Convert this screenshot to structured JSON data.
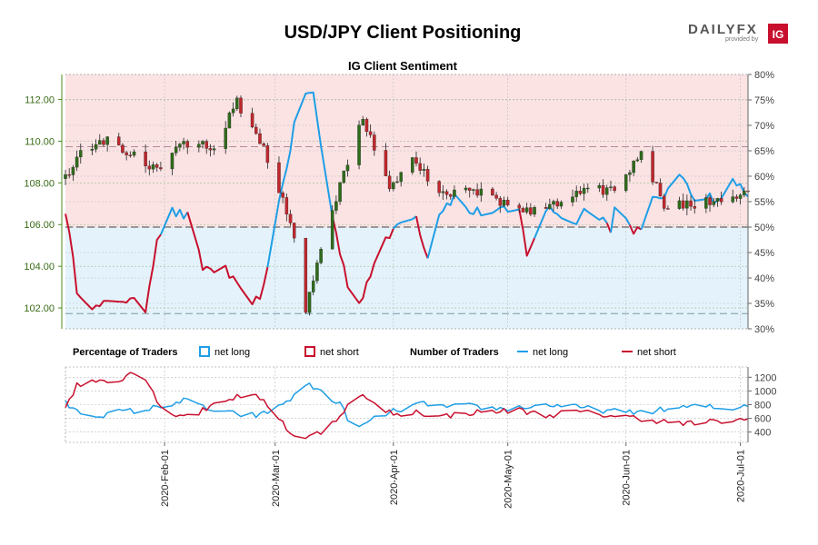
{
  "header": {
    "title": "USD/JPY Client Positioning",
    "logo_text": "DAILYFX",
    "logo_sub": "provided by",
    "logo_badge": "IG"
  },
  "colors": {
    "long": "#1e9ee6",
    "short": "#c8102e",
    "short_zone": "#fbe3e4",
    "long_zone": "#e4f3fb",
    "candle_up": "#2e6b1a",
    "candle_down": "#c0272d",
    "left_axis": "#4a8c1c"
  },
  "chart_data": [
    {
      "type": "candlestick+line",
      "title": "IG Client Sentiment",
      "left_axis": {
        "label": "",
        "ylim": [
          101.0,
          113.2
        ],
        "ticks": [
          "102.00",
          "104.00",
          "106.00",
          "108.00",
          "110.00",
          "112.00"
        ]
      },
      "right_axis": {
        "label": "",
        "ylim": [
          30,
          80
        ],
        "ticks": [
          "30%",
          "35%",
          "40%",
          "45%",
          "50%",
          "55%",
          "60%",
          "65%",
          "70%",
          "75%",
          "80%"
        ]
      },
      "date_range": [
        "2020-01-06",
        "2020-07-03"
      ],
      "x_ticks": [
        "2020-Feb-01",
        "2020-Mar-01",
        "2020-Apr-01",
        "2020-May-01",
        "2020-Jun-01",
        "2020-Jul-01"
      ],
      "reference_lines_pct": [
        50,
        65.8,
        33
      ],
      "price_keypoints": [
        [
          "2020-01-06",
          108.2
        ],
        [
          "2020-01-10",
          109.5
        ],
        [
          "2020-01-17",
          110.1
        ],
        [
          "2020-01-24",
          109.3
        ],
        [
          "2020-01-31",
          108.6
        ],
        [
          "2020-02-05",
          109.8
        ],
        [
          "2020-02-14",
          109.8
        ],
        [
          "2020-02-20",
          111.9
        ],
        [
          "2020-02-27",
          109.6
        ],
        [
          "2020-03-02",
          107.6
        ],
        [
          "2020-03-06",
          105.5
        ],
        [
          "2020-03-09",
          102.0
        ],
        [
          "2020-03-12",
          104.0
        ],
        [
          "2020-03-18",
          108.0
        ],
        [
          "2020-03-24",
          111.2
        ],
        [
          "2020-03-31",
          107.6
        ],
        [
          "2020-04-06",
          109.0
        ],
        [
          "2020-04-14",
          107.5
        ],
        [
          "2020-04-20",
          107.7
        ],
        [
          "2020-04-24",
          107.6
        ],
        [
          "2020-05-01",
          106.9
        ],
        [
          "2020-05-08",
          106.6
        ],
        [
          "2020-05-15",
          107.2
        ],
        [
          "2020-05-22",
          107.6
        ],
        [
          "2020-05-29",
          107.7
        ],
        [
          "2020-06-05",
          109.5
        ],
        [
          "2020-06-11",
          107.0
        ],
        [
          "2020-06-18",
          106.9
        ],
        [
          "2020-06-25",
          107.2
        ],
        [
          "2020-07-03",
          107.6
        ]
      ],
      "sentiment_keypoints": [
        [
          "2020-01-06",
          53.5
        ],
        [
          "2020-01-09",
          38
        ],
        [
          "2020-01-14",
          34
        ],
        [
          "2020-01-21",
          36
        ],
        [
          "2020-01-27",
          34
        ],
        [
          "2020-01-30",
          48
        ],
        [
          "2020-02-03",
          53
        ],
        [
          "2020-02-07",
          52
        ],
        [
          "2020-02-11",
          42
        ],
        [
          "2020-02-17",
          41.5
        ],
        [
          "2020-02-21",
          37
        ],
        [
          "2020-02-26",
          35
        ],
        [
          "2020-03-01",
          51
        ],
        [
          "2020-03-04",
          62
        ],
        [
          "2020-03-08",
          77
        ],
        [
          "2020-03-11",
          76
        ],
        [
          "2020-03-15",
          56
        ],
        [
          "2020-03-18",
          45
        ],
        [
          "2020-03-22",
          33
        ],
        [
          "2020-03-26",
          41
        ],
        [
          "2020-03-30",
          47
        ],
        [
          "2020-04-04",
          53
        ],
        [
          "2020-04-07",
          52
        ],
        [
          "2020-04-10",
          44
        ],
        [
          "2020-04-13",
          53
        ],
        [
          "2020-04-17",
          56
        ],
        [
          "2020-04-21",
          53
        ],
        [
          "2020-04-27",
          53
        ],
        [
          "2020-05-04",
          53
        ],
        [
          "2020-05-06",
          45
        ],
        [
          "2020-05-12",
          54
        ],
        [
          "2020-05-18",
          50.5
        ],
        [
          "2020-05-22",
          54
        ],
        [
          "2020-05-26",
          52
        ],
        [
          "2020-05-28",
          49
        ],
        [
          "2020-05-30",
          58
        ],
        [
          "2020-06-02",
          50
        ],
        [
          "2020-06-05",
          49
        ],
        [
          "2020-06-08",
          55
        ],
        [
          "2020-06-12",
          57
        ],
        [
          "2020-06-16",
          60
        ],
        [
          "2020-06-19",
          56
        ],
        [
          "2020-06-23",
          56
        ],
        [
          "2020-06-26",
          55
        ],
        [
          "2020-06-29",
          59
        ],
        [
          "2020-07-03",
          57
        ]
      ]
    },
    {
      "type": "line",
      "title": "Number of Traders",
      "ylim": [
        250,
        1350
      ],
      "y_ticks": [
        "400",
        "600",
        "800",
        "1000",
        "1200"
      ],
      "series": [
        {
          "name": "net long",
          "keypoints": [
            [
              "2020-01-06",
              820
            ],
            [
              "2020-01-09",
              700
            ],
            [
              "2020-01-14",
              640
            ],
            [
              "2020-01-21",
              700
            ],
            [
              "2020-01-27",
              720
            ],
            [
              "2020-01-31",
              780
            ],
            [
              "2020-02-06",
              860
            ],
            [
              "2020-02-10",
              800
            ],
            [
              "2020-02-14",
              700
            ],
            [
              "2020-02-20",
              660
            ],
            [
              "2020-02-26",
              640
            ],
            [
              "2020-03-02",
              780
            ],
            [
              "2020-03-06",
              920
            ],
            [
              "2020-03-09",
              1100
            ],
            [
              "2020-03-13",
              1000
            ],
            [
              "2020-03-18",
              800
            ],
            [
              "2020-03-22",
              420
            ],
            [
              "2020-03-27",
              600
            ],
            [
              "2020-04-01",
              700
            ],
            [
              "2020-04-06",
              780
            ],
            [
              "2020-04-10",
              820
            ],
            [
              "2020-04-15",
              760
            ],
            [
              "2020-04-21",
              780
            ],
            [
              "2020-04-28",
              740
            ],
            [
              "2020-05-05",
              760
            ],
            [
              "2020-05-12",
              800
            ],
            [
              "2020-05-19",
              760
            ],
            [
              "2020-05-26",
              720
            ],
            [
              "2020-06-01",
              680
            ],
            [
              "2020-06-05",
              700
            ],
            [
              "2020-06-10",
              720
            ],
            [
              "2020-06-16",
              760
            ],
            [
              "2020-06-22",
              780
            ],
            [
              "2020-06-27",
              720
            ],
            [
              "2020-07-03",
              810
            ]
          ]
        },
        {
          "name": "net short",
          "keypoints": [
            [
              "2020-01-06",
              770
            ],
            [
              "2020-01-09",
              1080
            ],
            [
              "2020-01-14",
              1150
            ],
            [
              "2020-01-20",
              1160
            ],
            [
              "2020-01-23",
              1270
            ],
            [
              "2020-01-27",
              1200
            ],
            [
              "2020-01-30",
              850
            ],
            [
              "2020-02-04",
              640
            ],
            [
              "2020-02-10",
              680
            ],
            [
              "2020-02-15",
              850
            ],
            [
              "2020-02-21",
              930
            ],
            [
              "2020-02-26",
              900
            ],
            [
              "2020-03-01",
              700
            ],
            [
              "2020-03-05",
              380
            ],
            [
              "2020-03-09",
              310
            ],
            [
              "2020-03-13",
              400
            ],
            [
              "2020-03-18",
              650
            ],
            [
              "2020-03-23",
              960
            ],
            [
              "2020-03-28",
              760
            ],
            [
              "2020-04-02",
              640
            ],
            [
              "2020-04-07",
              700
            ],
            [
              "2020-04-13",
              620
            ],
            [
              "2020-04-20",
              680
            ],
            [
              "2020-04-27",
              700
            ],
            [
              "2020-05-04",
              720
            ],
            [
              "2020-05-11",
              640
            ],
            [
              "2020-05-18",
              700
            ],
            [
              "2020-05-25",
              660
            ],
            [
              "2020-06-01",
              620
            ],
            [
              "2020-06-05",
              600
            ],
            [
              "2020-06-10",
              560
            ],
            [
              "2020-06-16",
              520
            ],
            [
              "2020-06-22",
              540
            ],
            [
              "2020-06-27",
              560
            ],
            [
              "2020-07-03",
              580
            ]
          ]
        }
      ]
    }
  ],
  "legend": {
    "pct_heading": "Percentage of Traders",
    "num_heading": "Number of Traders",
    "pct_long": "net long",
    "pct_short": "net short",
    "num_long": "net long",
    "num_short": "net short"
  }
}
